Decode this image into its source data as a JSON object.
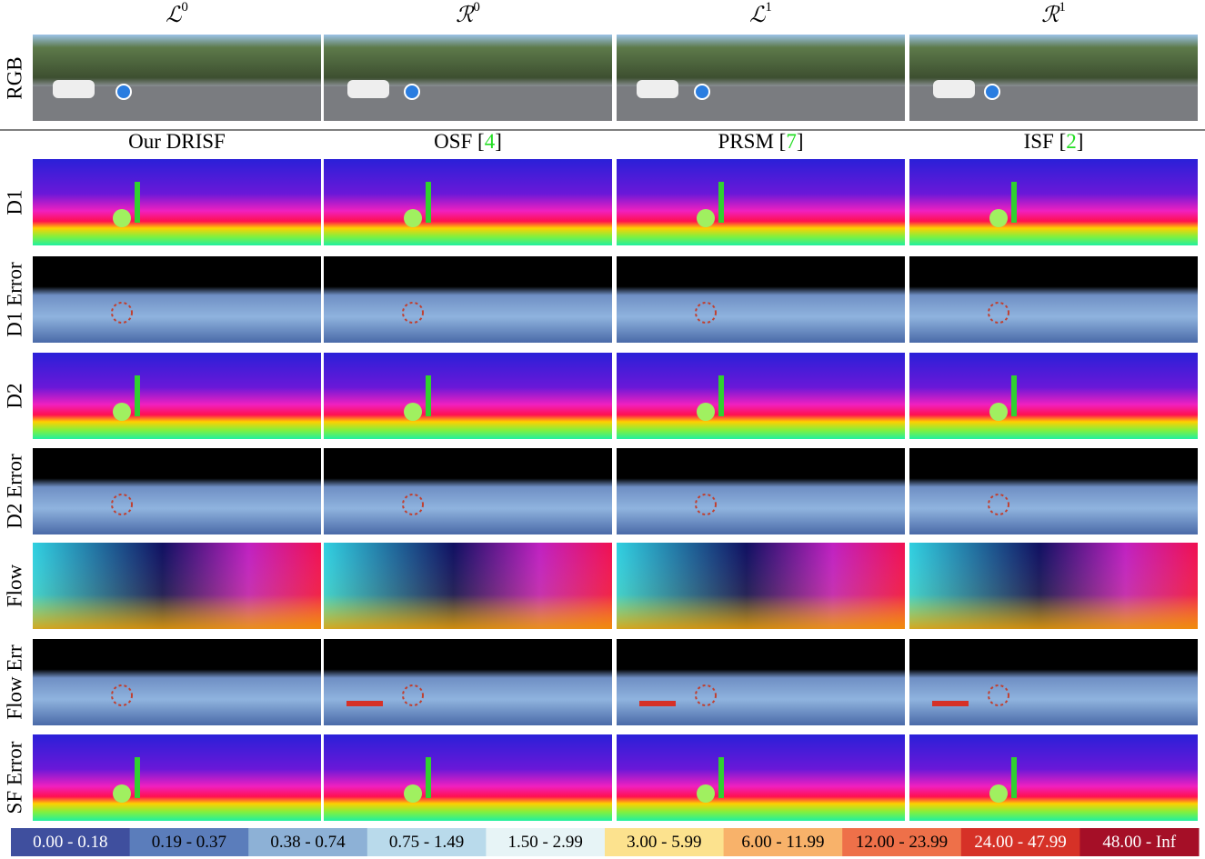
{
  "input_headers": [
    {
      "base": "ℒ",
      "sup": "0"
    },
    {
      "base": "ℛ",
      "sup": "0"
    },
    {
      "base": "ℒ",
      "sup": "1"
    },
    {
      "base": "ℛ",
      "sup": "1"
    }
  ],
  "input_row_label": "RGB",
  "method_headers": [
    [
      "Our DRISF"
    ],
    [
      "OSF [",
      "4",
      "]"
    ],
    [
      "PRSM [",
      "7",
      "]"
    ],
    [
      "ISF [",
      "2",
      "]"
    ]
  ],
  "row_labels": [
    "D1",
    "D1 Error",
    "D2",
    "D2 Error",
    "Flow",
    "Flow Err",
    "SF Error"
  ],
  "legend": [
    {
      "label": "0.00 - 0.18",
      "color": "#3f4f9e"
    },
    {
      "label": "0.19 - 0.37",
      "color": "#5b7dbb"
    },
    {
      "label": "0.38 - 0.74",
      "color": "#8db1d6"
    },
    {
      "label": "0.75 - 1.49",
      "color": "#b9daeb"
    },
    {
      "label": "1.50 - 2.99",
      "color": "#e7f4f6"
    },
    {
      "label": "3.00 - 5.99",
      "color": "#fce28e"
    },
    {
      "label": "6.00 - 11.99",
      "color": "#f8b26a"
    },
    {
      "label": "12.00 - 23.99",
      "color": "#ee7049"
    },
    {
      "label": "24.00 - 47.99",
      "color": "#d63127"
    },
    {
      "label": "48.00 - Inf",
      "color": "#a50f27"
    }
  ]
}
